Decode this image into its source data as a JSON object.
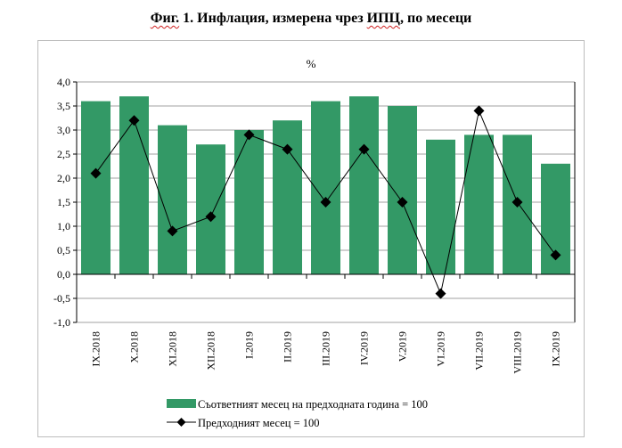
{
  "title": {
    "part1": "Фиг.",
    "part2": " 1. Инфлация, измерена чрез ",
    "part3": "ИПЦ",
    "part4": ", по месеци"
  },
  "chart_data": {
    "type": "bar+line",
    "title": "Фиг. 1. Инфлация, измерена чрез ИПЦ, по месеци",
    "unit_label": "%",
    "categories": [
      "IX.2018",
      "X.2018",
      "XI.2018",
      "XII.2018",
      "I.2019",
      "II.2019",
      "III.2019",
      "IV.2019",
      "V.2019",
      "VI.2019",
      "VII.2019",
      "VIII.2019",
      "IX.2019"
    ],
    "series": [
      {
        "name": "Съответният месец на предходната година = 100",
        "type": "bar",
        "color": "#339966",
        "values": [
          3.6,
          3.7,
          3.1,
          2.7,
          3.0,
          3.2,
          3.6,
          3.7,
          3.5,
          2.8,
          2.9,
          2.9,
          2.3
        ]
      },
      {
        "name": "Предходният месец = 100",
        "type": "line",
        "color": "#000000",
        "marker": "diamond",
        "values": [
          2.1,
          3.2,
          0.9,
          1.2,
          2.9,
          2.6,
          1.5,
          2.6,
          1.5,
          -0.4,
          3.4,
          1.5,
          0.4
        ]
      }
    ],
    "ylim": [
      -1.0,
      4.0
    ],
    "yticks": [
      "-1,0",
      "-0,5",
      "0,0",
      "0,5",
      "1,0",
      "1,5",
      "2,0",
      "2,5",
      "3,0",
      "3,5",
      "4,0"
    ],
    "grid": true,
    "legend": "bottom"
  }
}
